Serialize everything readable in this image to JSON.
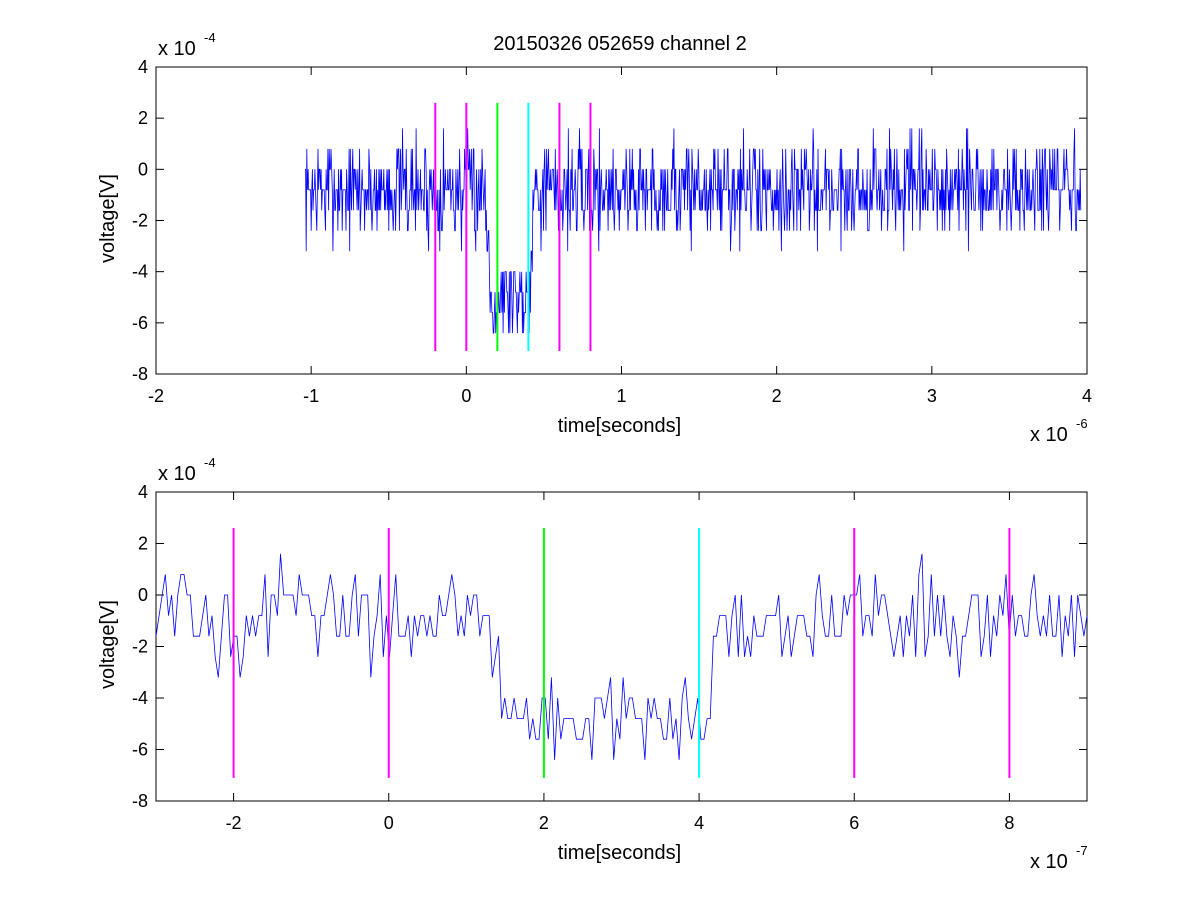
{
  "title": "20150326 052659 channel 2",
  "chart_data": [
    {
      "type": "line",
      "xlabel": "time[seconds]",
      "ylabel": "voltage[V]",
      "x_multiplier": "x 10",
      "x_exponent": "-6",
      "y_multiplier": "x 10",
      "y_exponent": "-4",
      "xlim": [
        -2,
        4
      ],
      "ylim": [
        -8,
        4
      ],
      "xticks": [
        "-2",
        "-1",
        "0",
        "1",
        "2",
        "3",
        "4"
      ],
      "yticks": [
        "4",
        "2",
        "0",
        "-2",
        "-4",
        "-6",
        "-8"
      ],
      "xtick_values": [
        -2,
        -1,
        0,
        1,
        2,
        3,
        4
      ],
      "ytick_values": [
        4,
        2,
        0,
        -2,
        -4,
        -6,
        -8
      ],
      "signal_color": "#0000ff",
      "signal": {
        "x_start": -1.04,
        "x_end": 3.96,
        "baseline": -0.8,
        "dip_start": 0.12,
        "dip_end": 0.44,
        "dip_level": -4.9,
        "quantum": 0.8,
        "noise": 1.0,
        "samples": 1250
      },
      "vlines": [
        {
          "x": -0.2,
          "color": "#ff00ff"
        },
        {
          "x": 0.0,
          "color": "#ff00ff"
        },
        {
          "x": 0.2,
          "color": "#00ff00"
        },
        {
          "x": 0.4,
          "color": "#00ffff"
        },
        {
          "x": 0.6,
          "color": "#ff00ff"
        },
        {
          "x": 0.8,
          "color": "#ff00ff"
        }
      ],
      "vline_range": [
        -7.1,
        2.6
      ]
    },
    {
      "type": "line",
      "xlabel": "time[seconds]",
      "ylabel": "voltage[V]",
      "x_multiplier": "x 10",
      "x_exponent": "-7",
      "y_multiplier": "x 10",
      "y_exponent": "-4",
      "xlim": [
        -3,
        9
      ],
      "ylim": [
        -8,
        4
      ],
      "xticks": [
        "-2",
        "0",
        "2",
        "4",
        "6",
        "8"
      ],
      "yticks": [
        "4",
        "2",
        "0",
        "-2",
        "-4",
        "-6",
        "-8"
      ],
      "xtick_values": [
        -2,
        0,
        2,
        4,
        6,
        8
      ],
      "ytick_values": [
        4,
        2,
        0,
        -2,
        -4,
        -6,
        -8
      ],
      "signal_color": "#0000ff",
      "signal": {
        "x_start": -3.0,
        "x_end": 9.0,
        "baseline": -0.8,
        "dip_start": 1.2,
        "dip_end": 4.4,
        "dip_level": -4.9,
        "quantum": 0.8,
        "noise": 0.9,
        "samples": 300
      },
      "vlines": [
        {
          "x": -2,
          "color": "#ff00ff"
        },
        {
          "x": 0,
          "color": "#ff00ff"
        },
        {
          "x": 2,
          "color": "#00ff00"
        },
        {
          "x": 4,
          "color": "#00ffff"
        },
        {
          "x": 6,
          "color": "#ff00ff"
        },
        {
          "x": 8,
          "color": "#ff00ff"
        }
      ],
      "vline_range": [
        -7.1,
        2.6
      ]
    }
  ]
}
